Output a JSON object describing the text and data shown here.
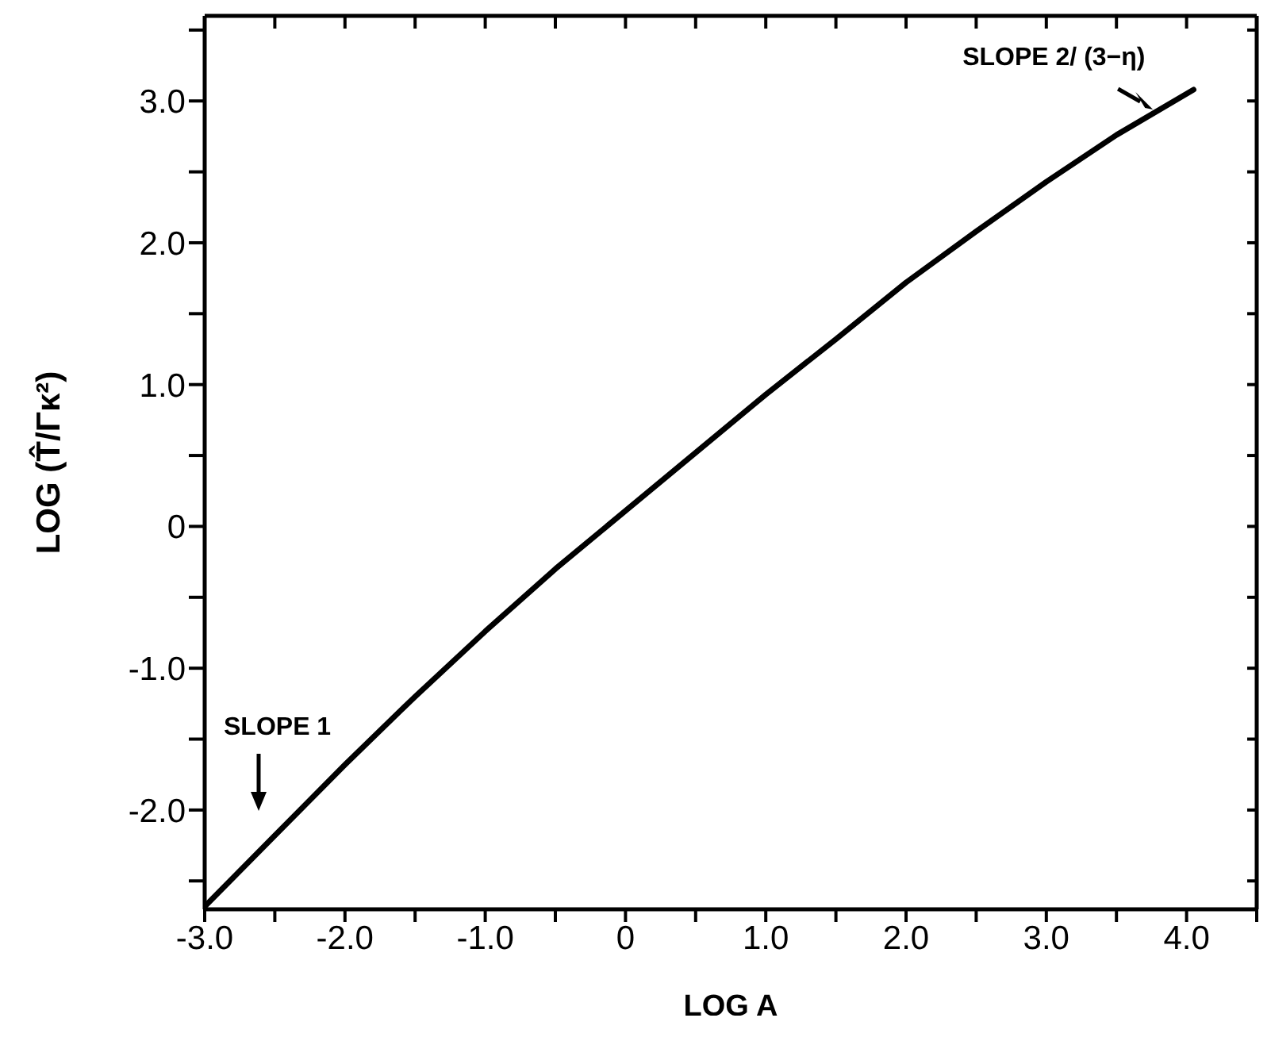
{
  "chart_data": {
    "type": "line",
    "xlabel": "LOG A",
    "ylabel": "LOG (T̂/Γκ²)",
    "x": [
      -3.0,
      -2.5,
      -2.0,
      -1.5,
      -1.0,
      -0.5,
      0.0,
      0.5,
      1.0,
      1.5,
      2.0,
      2.5,
      3.0,
      3.5,
      4.05
    ],
    "series": [
      {
        "color": "#000000",
        "values": [
          -2.68,
          -2.18,
          -1.68,
          -1.2,
          -0.74,
          -0.3,
          0.11,
          0.52,
          0.93,
          1.32,
          1.72,
          2.08,
          2.43,
          2.76,
          3.08
        ]
      }
    ],
    "xlim": [
      -3.0,
      4.5
    ],
    "xticks": [
      {
        "value": -3.0,
        "label": "-3.0"
      },
      {
        "value": -2.5,
        "label": null
      },
      {
        "value": -2.0,
        "label": "-2.0"
      },
      {
        "value": -1.5,
        "label": null
      },
      {
        "value": -1.0,
        "label": "-1.0"
      },
      {
        "value": -0.5,
        "label": null
      },
      0,
      {
        "value": 0.5,
        "label": null
      },
      {
        "value": 1.0,
        "label": "1.0"
      },
      {
        "value": 1.5,
        "label": null
      },
      {
        "value": 2.0,
        "label": "2.0"
      },
      {
        "value": 2.5,
        "label": null
      },
      {
        "value": 3.0,
        "label": "3.0"
      },
      {
        "value": 3.5,
        "label": null
      },
      {
        "value": 4.0,
        "label": "4.0"
      },
      {
        "value": 4.5,
        "label": null
      }
    ],
    "ylim": [
      -2.7,
      3.6
    ],
    "yticks": [
      {
        "value": -2.5,
        "label": null
      },
      {
        "value": -2.0,
        "label": "-2.0"
      },
      {
        "value": -1.5,
        "label": null
      },
      {
        "value": -1.0,
        "label": "-1.0"
      },
      {
        "value": -0.5,
        "label": null
      },
      0,
      {
        "value": 0.5,
        "label": null
      },
      {
        "value": 1.0,
        "label": "1.0"
      },
      {
        "value": 1.5,
        "label": null
      },
      {
        "value": 2.0,
        "label": "2.0"
      },
      {
        "value": 2.5,
        "label": null
      },
      {
        "value": 3.0,
        "label": "3.0"
      },
      {
        "value": 3.5,
        "label": null
      }
    ],
    "annotations": [
      "SLOPE 1",
      {
        "text": "SLOPE 2/ (3−η)",
        "x": 3.75,
        "y": 2.93
      }
    ],
    "grid": false,
    "legend": false,
    "marker": "none",
    "line_style": "solid"
  }
}
